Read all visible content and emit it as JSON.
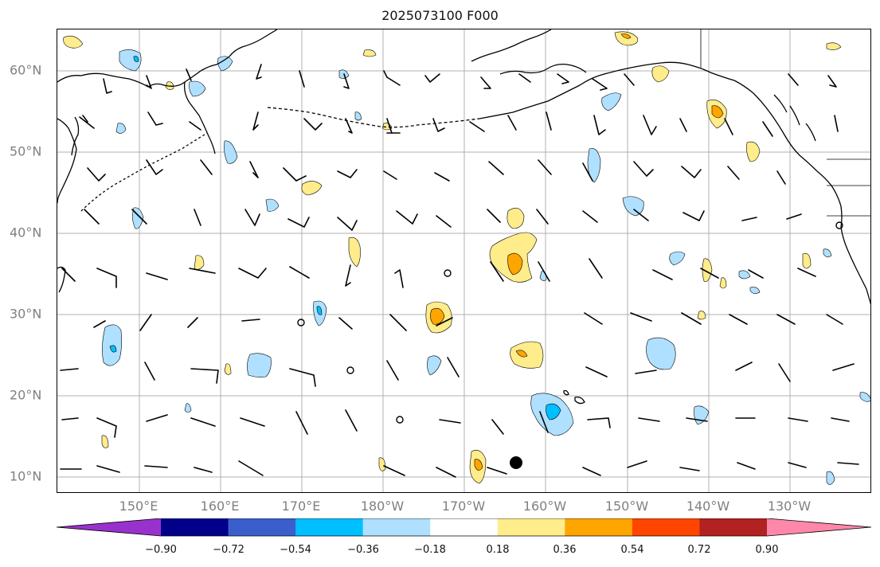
{
  "title": "2025073100 F000",
  "lat_labels": [
    "60°N",
    "50°N",
    "40°N",
    "30°N",
    "20°N",
    "10°N"
  ],
  "lon_labels": [
    "150°E",
    "160°E",
    "170°E",
    "180°W",
    "170°W",
    "160°W",
    "150°W",
    "140°W",
    "130°W"
  ],
  "colorbar": {
    "tick_labels": [
      "−0.90",
      "−0.72",
      "−0.54",
      "−0.36",
      "−0.18",
      "0.18",
      "0.36",
      "0.54",
      "0.72",
      "0.90"
    ],
    "colors": [
      "#9932CC",
      "#00008B",
      "#3A5FCD",
      "#00BFFF",
      "#B0E0FF",
      "#FFFFFF",
      "#FFEC8B",
      "#FFA500",
      "#FF4500",
      "#B22222",
      "#FF88AA"
    ]
  },
  "map_colors": {
    "neg_light": "#B0E0FF",
    "neg_mid": "#00BFFF",
    "pos_light": "#FFEC8B",
    "pos_mid": "#FFA500",
    "grid": "#b0b0b0"
  },
  "map_features": {
    "grid": true,
    "coastlines": true,
    "wind_barbs": true,
    "hurricane_marker_present": true
  }
}
